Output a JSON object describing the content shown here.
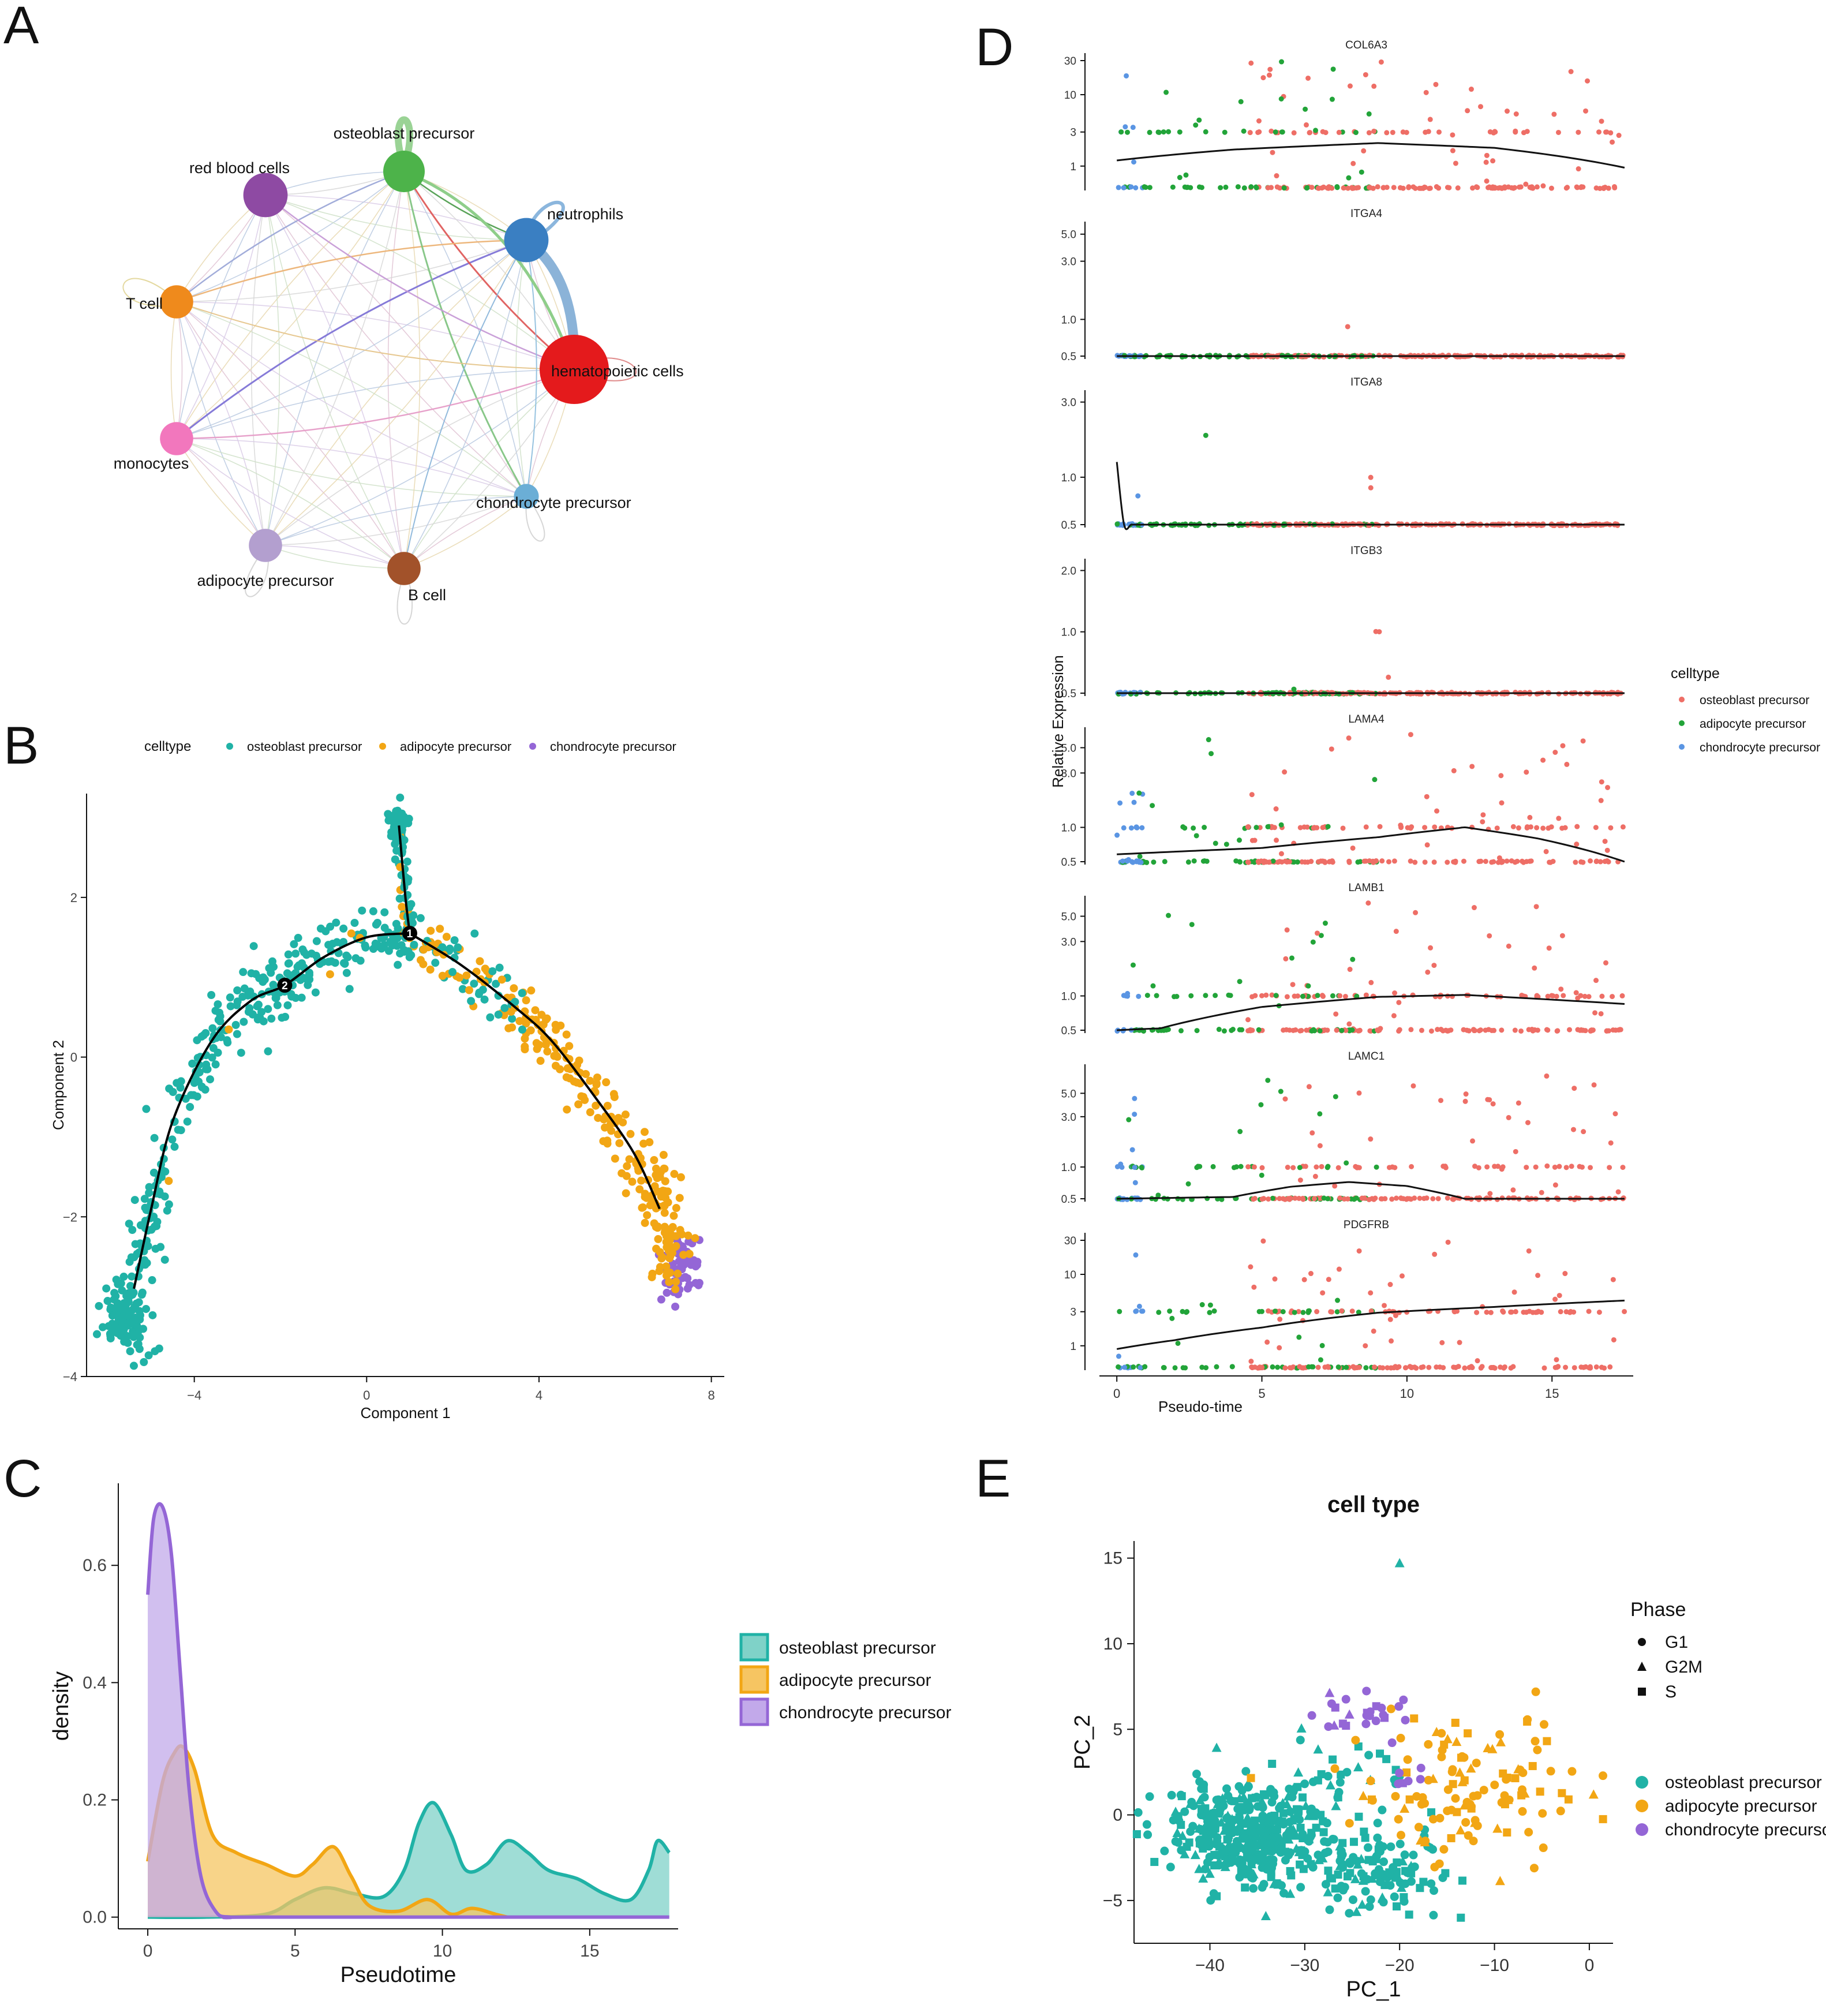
{
  "panel_labels": {
    "a": "A",
    "b": "B",
    "c": "C",
    "d": "D",
    "e": "E"
  },
  "colors": {
    "osteoblast": "#20b2a6",
    "adipocyte": "#f2a614",
    "chondrocyte": "#9466d6",
    "d_osteoblast": "#ee6e66",
    "d_adipocyte": "#22a439",
    "d_chondrocyte": "#5a95e3"
  },
  "chart_data": [
    {
      "panel": "A",
      "type": "network",
      "nodes": [
        {
          "name": "osteoblast precursor",
          "color": "#4db34a",
          "size": 3.0
        },
        {
          "name": "red blood cells",
          "color": "#8e4aa3",
          "size": 3.2
        },
        {
          "name": "neutrophils",
          "color": "#3a7fc2",
          "size": 3.2
        },
        {
          "name": "T cell",
          "color": "#ef8a1c",
          "size": 2.4
        },
        {
          "name": "hematopoietic cells",
          "color": "#e41a1c",
          "size": 5.0
        },
        {
          "name": "monocytes",
          "color": "#f277bd",
          "size": 2.4
        },
        {
          "name": "chondrocyte precursor",
          "color": "#6baed6",
          "size": 1.8
        },
        {
          "name": "adipocyte precursor",
          "color": "#b39fcf",
          "size": 2.4
        },
        {
          "name": "B cell",
          "color": "#a2522a",
          "size": 2.4
        }
      ],
      "strong_edges": [
        {
          "from": "neutrophils",
          "to": "hematopoietic cells",
          "weight": 6
        },
        {
          "from": "osteoblast precursor",
          "to": "hematopoietic cells",
          "weight": 2
        },
        {
          "from": "neutrophils",
          "to": "monocytes",
          "weight": 1.5
        }
      ]
    },
    {
      "panel": "B",
      "type": "scatter",
      "legend_title": "celltype",
      "legend": [
        "osteoblast precursor",
        "adipocyte precursor",
        "chondrocyte precursor"
      ],
      "xlabel": "Component 1",
      "ylabel": "Component 2",
      "xlim": [
        -6.5,
        8.3
      ],
      "ylim": [
        -4,
        3.3
      ],
      "xticks": [
        -4,
        0,
        4,
        8
      ],
      "xtick_labels": [
        "−4",
        "0",
        "4",
        "8"
      ],
      "yticks": [
        -4,
        -2,
        0,
        2
      ],
      "ytick_labels": [
        "−4",
        "−2",
        "0",
        "2"
      ],
      "branch_points": [
        {
          "label": "1",
          "x": 1.0,
          "y": 1.55
        },
        {
          "label": "2",
          "x": -1.9,
          "y": 0.9
        }
      ],
      "trajectory": [
        [
          [
            -5.4,
            -2.9
          ],
          [
            -5.0,
            -1.9
          ],
          [
            -4.5,
            -0.8
          ],
          [
            -3.6,
            0.2
          ],
          [
            -2.7,
            0.7
          ],
          [
            -1.9,
            0.9
          ],
          [
            -1.0,
            1.25
          ],
          [
            0.0,
            1.5
          ],
          [
            1.0,
            1.55
          ]
        ],
        [
          [
            1.0,
            1.55
          ],
          [
            2.2,
            1.15
          ],
          [
            3.5,
            0.6
          ],
          [
            4.3,
            0.2
          ],
          [
            5.3,
            -0.5
          ],
          [
            6.2,
            -1.2
          ],
          [
            6.8,
            -1.9
          ]
        ],
        [
          [
            1.0,
            1.55
          ],
          [
            0.9,
            2.0
          ],
          [
            0.75,
            2.9
          ]
        ]
      ]
    },
    {
      "panel": "C",
      "type": "area",
      "xlabel": "Pseudotime",
      "ylabel": "density",
      "xlim": [
        -1,
        18
      ],
      "ylim": [
        -0.02,
        0.74
      ],
      "xticks": [
        0,
        5,
        10,
        15
      ],
      "yticks": [
        0.0,
        0.2,
        0.4,
        0.6
      ],
      "ytick_labels": [
        "0.0",
        "0.2",
        "0.4",
        "0.6"
      ],
      "legend": [
        "osteoblast precursor",
        "adipocyte precursor",
        "chondrocyte precursor"
      ],
      "series": [
        {
          "name": "osteoblast precursor",
          "x": [
            0,
            2,
            4,
            5,
            6,
            7,
            8,
            8.7,
            9.2,
            9.7,
            10.3,
            10.8,
            11.5,
            12.2,
            12.9,
            13.6,
            14.6,
            15.5,
            16.4,
            17.0,
            17.3,
            17.7
          ],
          "y": [
            0.0,
            0.0,
            0.005,
            0.03,
            0.05,
            0.04,
            0.035,
            0.08,
            0.16,
            0.195,
            0.14,
            0.08,
            0.09,
            0.13,
            0.11,
            0.08,
            0.065,
            0.04,
            0.03,
            0.08,
            0.13,
            0.11
          ]
        },
        {
          "name": "adipocyte precursor",
          "x": [
            0,
            0.5,
            0.9,
            1.2,
            1.6,
            2.2,
            3,
            4,
            5,
            5.6,
            6.3,
            6.9,
            7.5,
            8.5,
            9.5,
            10.3,
            11,
            11.8,
            12.2
          ],
          "y": [
            0.095,
            0.23,
            0.28,
            0.29,
            0.25,
            0.14,
            0.11,
            0.09,
            0.07,
            0.09,
            0.12,
            0.07,
            0.02,
            0.01,
            0.03,
            0.005,
            0.015,
            0.005,
            0.0
          ]
        },
        {
          "name": "chondrocyte precursor",
          "x": [
            0,
            0.2,
            0.5,
            0.8,
            1.1,
            1.4,
            1.8,
            2.3,
            2.8,
            4,
            17.7
          ],
          "y": [
            0.55,
            0.68,
            0.7,
            0.62,
            0.42,
            0.22,
            0.07,
            0.01,
            0.0,
            0.0,
            0.0
          ]
        }
      ]
    },
    {
      "panel": "D",
      "type": "scatter",
      "xlabel": "Pseudo-time",
      "ylabel": "Relative Expression",
      "xlim": [
        -0.6,
        17.8
      ],
      "xticks": [
        0,
        5,
        10,
        15
      ],
      "legend_title": "celltype",
      "legend": [
        "osteoblast precursor",
        "adipocyte precursor",
        "chondrocyte precursor"
      ],
      "genes": [
        {
          "name": "COL6A3",
          "ticks": [
            "30",
            "10",
            "3",
            "1"
          ],
          "tickv": [
            30,
            10,
            3,
            1
          ],
          "range": [
            0.5,
            30
          ],
          "curve": [
            [
              0,
              1.2
            ],
            [
              4,
              1.7
            ],
            [
              9,
              2.1
            ],
            [
              13,
              1.8
            ],
            [
              17.5,
              0.95
            ]
          ]
        },
        {
          "name": "ITGA4",
          "ticks": [
            "5.0",
            "3.0",
            "1.0",
            "0.5"
          ],
          "tickv": [
            5,
            3,
            1,
            0.5
          ],
          "range": [
            0.5,
            5.5
          ],
          "curve": [
            [
              0,
              0.5
            ],
            [
              17.5,
              0.5
            ]
          ]
        },
        {
          "name": "ITGA8",
          "ticks": [
            "3.0",
            "1.0",
            "0.5"
          ],
          "tickv": [
            3,
            1,
            0.5
          ],
          "range": [
            0.5,
            3.2
          ],
          "curve": [
            [
              0,
              1.25
            ],
            [
              0.25,
              0.5
            ],
            [
              17.5,
              0.5
            ]
          ]
        },
        {
          "name": "ITGB3",
          "ticks": [
            "2.0",
            "1.0",
            "0.5"
          ],
          "tickv": [
            2,
            1,
            0.5
          ],
          "range": [
            0.5,
            2.1
          ],
          "curve": [
            [
              0,
              0.5
            ],
            [
              17.5,
              0.5
            ]
          ]
        },
        {
          "name": "LAMA4",
          "ticks": [
            "5.0",
            "3.0",
            "1.0",
            "0.5"
          ],
          "tickv": [
            5,
            3,
            1,
            0.5
          ],
          "range": [
            0.5,
            6.5
          ],
          "curve": [
            [
              0,
              0.58
            ],
            [
              5,
              0.66
            ],
            [
              9,
              0.82
            ],
            [
              12,
              1.0
            ],
            [
              14.5,
              0.8
            ],
            [
              17.5,
              0.5
            ]
          ]
        },
        {
          "name": "LAMB1",
          "ticks": [
            "5.0",
            "3.0",
            "1.0",
            "0.5"
          ],
          "tickv": [
            5,
            3,
            1,
            0.5
          ],
          "range": [
            0.5,
            6.5
          ],
          "curve": [
            [
              0,
              0.5
            ],
            [
              1.5,
              0.52
            ],
            [
              5,
              0.8
            ],
            [
              9,
              0.98
            ],
            [
              12,
              1.02
            ],
            [
              17.5,
              0.85
            ]
          ]
        },
        {
          "name": "LAMC1",
          "ticks": [
            "5.0",
            "3.0",
            "1.0",
            "0.5"
          ],
          "tickv": [
            5,
            3,
            1,
            0.5
          ],
          "range": [
            0.5,
            8
          ],
          "curve": [
            [
              0,
              0.5
            ],
            [
              4,
              0.52
            ],
            [
              6,
              0.65
            ],
            [
              8,
              0.72
            ],
            [
              10,
              0.66
            ],
            [
              12,
              0.5
            ],
            [
              17.5,
              0.5
            ]
          ]
        },
        {
          "name": "PDGFRB",
          "ticks": [
            "30",
            "10",
            "3",
            "1"
          ],
          "tickv": [
            30,
            10,
            3,
            1
          ],
          "range": [
            0.5,
            30
          ],
          "curve": [
            [
              0,
              0.9
            ],
            [
              2,
              1.2
            ],
            [
              5,
              1.8
            ],
            [
              9,
              2.9
            ],
            [
              13,
              3.5
            ],
            [
              17.5,
              4.3
            ]
          ]
        }
      ]
    },
    {
      "panel": "E",
      "type": "scatter",
      "title": "cell type",
      "xlabel": "PC_1",
      "ylabel": "PC_2",
      "xlim": [
        -48,
        2.5
      ],
      "ylim": [
        -7.5,
        16
      ],
      "xticks": [
        -40,
        -30,
        -20,
        -10,
        0
      ],
      "xtick_labels": [
        "−40",
        "−30",
        "−20",
        "−10",
        "0"
      ],
      "yticks": [
        -5,
        0,
        5,
        10,
        15
      ],
      "ytick_labels": [
        "−5",
        "0",
        "5",
        "10",
        "15"
      ],
      "phase_title": "Phase",
      "phases": [
        "G1",
        "G2M",
        "S"
      ],
      "legend": [
        "osteoblast precursor",
        "adipocyte precursor",
        "chondrocyte precursor"
      ],
      "outlier": {
        "x": -20,
        "y": 14.7,
        "type": "osteoblast precursor",
        "phase": "G2M"
      }
    }
  ]
}
